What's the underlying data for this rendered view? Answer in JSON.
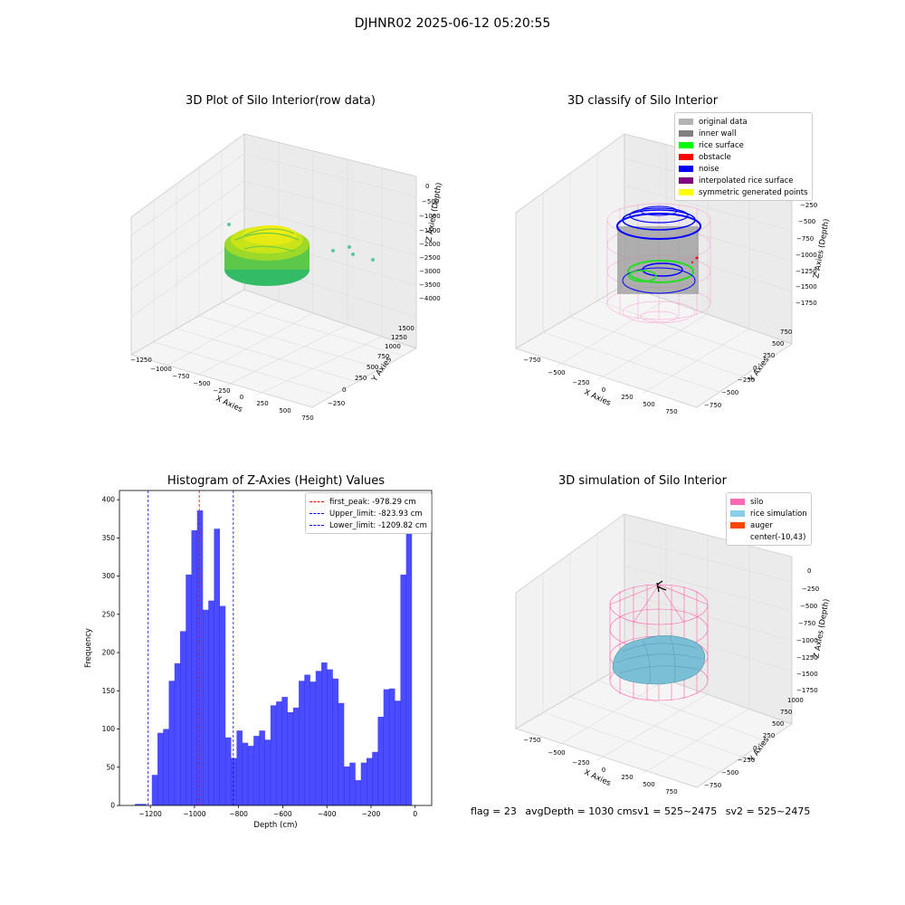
{
  "suptitle": "DJHNR02 2025-06-12 05:20:55",
  "panels": {
    "raw": {
      "title": "3D Plot of Silo Interior(row data)",
      "xlabel": "X Axies",
      "ylabel": "Y Axies",
      "zlabel": "Z Axies (Depth)",
      "xticks": [
        "−1250",
        "−1000",
        "−750",
        "−500",
        "−250",
        "0",
        "250",
        "500",
        "750"
      ],
      "yticks": [
        "−250",
        "0",
        "250",
        "500",
        "750",
        "1000",
        "1250",
        "1500"
      ],
      "zticks": [
        "0",
        "−500",
        "−1000",
        "−1500",
        "−2000",
        "−2500",
        "−3000",
        "−3500",
        "−4000"
      ]
    },
    "classify": {
      "title": "3D classify of Silo Interior",
      "xlabel": "X Axies",
      "ylabel": "Y Axies",
      "zlabel": "Z Axies (Depth)",
      "xticks": [
        "−750",
        "−500",
        "−250",
        "0",
        "250",
        "500",
        "750"
      ],
      "yticks": [
        "−750",
        "−500",
        "−250",
        "0",
        "250",
        "500",
        "750"
      ],
      "zticks": [
        "0",
        "−250",
        "−500",
        "−750",
        "−1000",
        "−1250",
        "−1500",
        "−1750"
      ],
      "legend": [
        {
          "label": "original data",
          "color": "#b3b3b3"
        },
        {
          "label": "inner wall",
          "color": "#808080"
        },
        {
          "label": "rice surface",
          "color": "#00ff00"
        },
        {
          "label": "obstacle",
          "color": "#ff0000"
        },
        {
          "label": "noise",
          "color": "#0000ff"
        },
        {
          "label": "interpolated rice surface",
          "color": "#800080"
        },
        {
          "label": "symmetric generated points",
          "color": "#ffff00"
        }
      ]
    },
    "simulation": {
      "title": "3D simulation of Silo Interior",
      "xlabel": "X Axies",
      "ylabel": "Y Axies",
      "zlabel": "Z Axies (Depth)",
      "xticks": [
        "−750",
        "−500",
        "−250",
        "0",
        "250",
        "500",
        "750"
      ],
      "yticks": [
        "−750",
        "−500",
        "−250",
        "0",
        "250",
        "500",
        "750",
        "1000"
      ],
      "zticks": [
        "0",
        "−250",
        "−500",
        "−750",
        "−1000",
        "−1250",
        "−1500",
        "−1750"
      ],
      "legend": [
        {
          "label": "silo",
          "color": "#ff69b4"
        },
        {
          "label": "rice simulation",
          "color": "#87ceeb"
        },
        {
          "label": "auger",
          "color": "#ff4500"
        },
        {
          "label": "center(-10,43)",
          "color": ""
        }
      ]
    }
  },
  "chart_data": {
    "type": "bar",
    "title": "Histogram of Z-Axies (Height) Values",
    "xlabel": "Depth (cm)",
    "ylabel": "Frequency",
    "xlim": [
      -1340,
      75
    ],
    "ylim": [
      0,
      412
    ],
    "xticks": [
      -1200,
      -1000,
      -800,
      -600,
      -400,
      -200,
      0
    ],
    "xtick_labels": [
      "−1200",
      "−1000",
      "−800",
      "−600",
      "−400",
      "−200",
      "0"
    ],
    "yticks": [
      0,
      50,
      100,
      150,
      200,
      250,
      300,
      350,
      400
    ],
    "bar_color": "#0000ff",
    "bins_start": -1270,
    "bin_width": 25.6,
    "values": [
      2,
      2,
      0,
      40,
      95,
      100,
      163,
      186,
      228,
      302,
      360,
      386,
      256,
      268,
      362,
      261,
      89,
      62,
      98,
      82,
      78,
      91,
      98,
      86,
      131,
      136,
      142,
      122,
      128,
      163,
      171,
      162,
      176,
      187,
      178,
      166,
      134,
      51,
      56,
      33,
      56,
      62,
      70,
      116,
      152,
      153,
      137,
      302,
      390
    ],
    "vlines": [
      {
        "x": -978.29,
        "color": "#ff0000",
        "label": "first_peak: -978.29 cm"
      },
      {
        "x": -823.93,
        "color": "#0000ff",
        "label": "Upper_limit: -823.93 cm"
      },
      {
        "x": -1209.82,
        "color": "#0000ff",
        "label": "Lower_limit: -1209.82 cm"
      }
    ],
    "legend_position": "top-right"
  },
  "footer": {
    "flag": "flag = 23",
    "avg": "avgDepth = 1030 cmsv1 = 525~2475",
    "sv2": "sv2 = 525~2475"
  }
}
